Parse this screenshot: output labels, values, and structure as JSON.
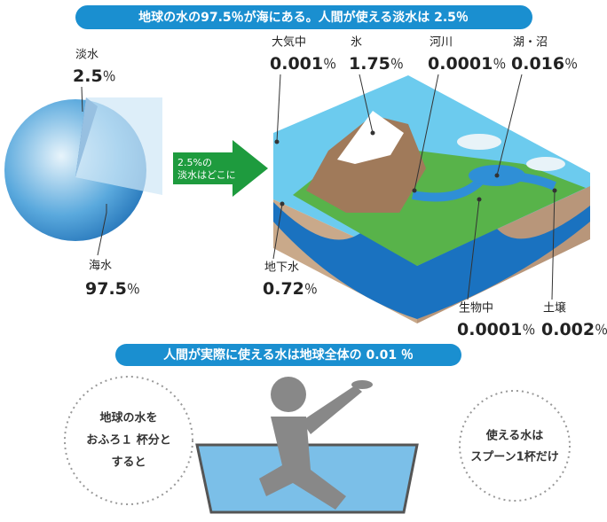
{
  "header": {
    "title": "地球の水の97.5％が海にある。人間が使える淡水は 2.5％"
  },
  "globe": {
    "fresh": {
      "label": "淡水",
      "value": "2.5",
      "unit": "％"
    },
    "sea": {
      "label": "海水",
      "value": "97.5",
      "unit": "％"
    }
  },
  "arrow": {
    "lines": [
      "2.5%の",
      "淡水はどこに"
    ]
  },
  "freshwater": [
    {
      "label": "大気中",
      "value": "0.001",
      "unit": "％"
    },
    {
      "label": "氷",
      "value": "1.75",
      "unit": "％"
    },
    {
      "label": "河川",
      "value": "0.0001",
      "unit": "％"
    },
    {
      "label": "湖・沼",
      "value": "0.016",
      "unit": "％"
    },
    {
      "label": "地下水",
      "value": "0.72",
      "unit": "％"
    },
    {
      "label": "生物中",
      "value": "0.0001",
      "unit": "％"
    },
    {
      "label": "土壌",
      "value": "0.002",
      "unit": "％"
    }
  ],
  "subheader": {
    "title": "人間が実際に使える水は地球全体の 0.01 ％"
  },
  "bath": {
    "left": [
      "地球の水を",
      "おふろ１ 杯分と",
      "すると"
    ],
    "right": [
      "使える水は",
      "スプーン1杯だけ"
    ]
  }
}
